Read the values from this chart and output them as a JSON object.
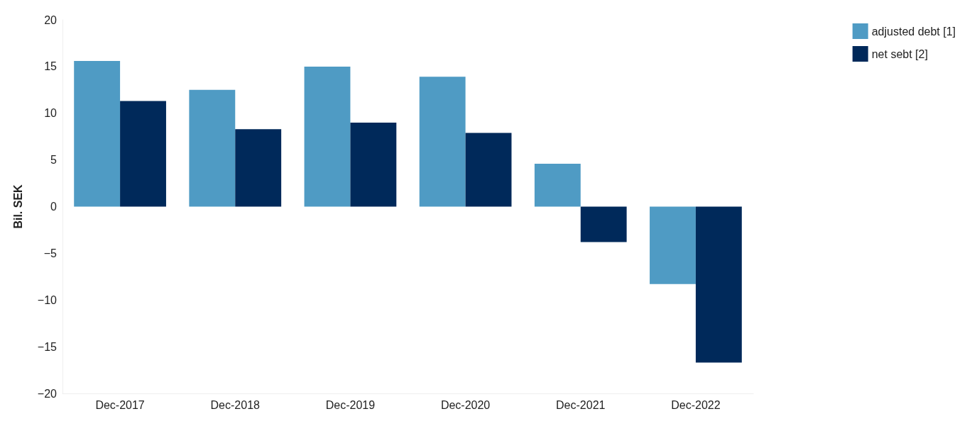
{
  "chart_data": {
    "type": "bar",
    "ylabel": "Bil. SEK",
    "categories": [
      "Dec-2017",
      "Dec-2018",
      "Dec-2019",
      "Dec-2020",
      "Dec-2021",
      "Dec-2022"
    ],
    "series": [
      {
        "name": "adjusted debt [1]",
        "color": "#4f9bc4",
        "values": [
          15.6,
          12.5,
          15.0,
          13.9,
          4.6,
          -8.3
        ]
      },
      {
        "name": "net sebt [2]",
        "color": "#00295a",
        "values": [
          11.3,
          8.3,
          9.0,
          7.9,
          -3.8,
          -16.7
        ]
      }
    ],
    "ylim": [
      -20,
      20
    ],
    "yticks": [
      -20,
      -15,
      -10,
      -5,
      0,
      5,
      10,
      15,
      20
    ],
    "grid": false,
    "legend": "top right"
  }
}
